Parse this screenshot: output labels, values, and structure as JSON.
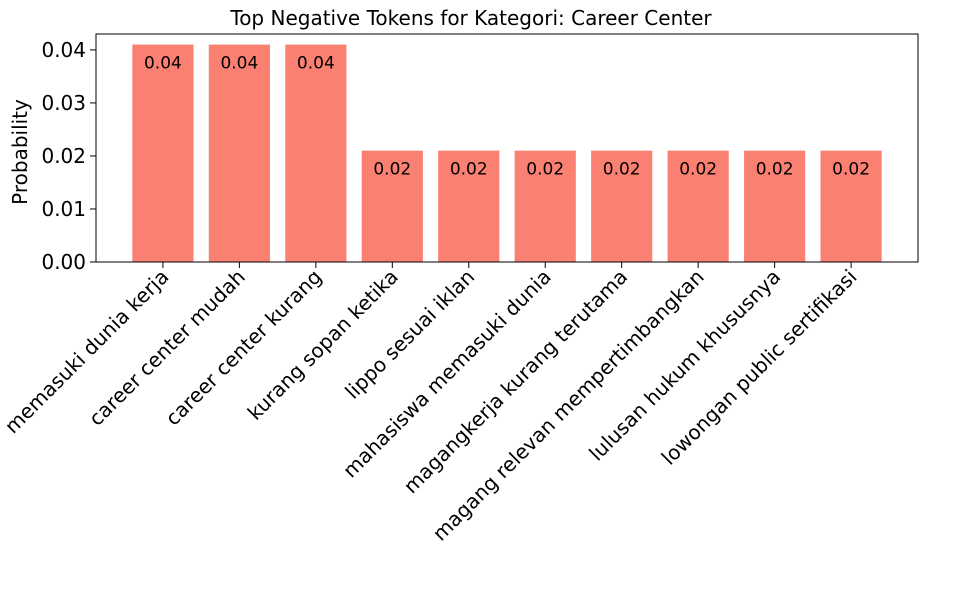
{
  "chart_data": {
    "type": "bar",
    "title": "Top Negative Tokens for Kategori: Career Center",
    "xlabel": "",
    "ylabel": "Probability",
    "ylim": [
      0,
      0.043
    ],
    "yticks": [
      "0.00",
      "0.01",
      "0.02",
      "0.03",
      "0.04"
    ],
    "ytick_values": [
      0,
      0.01,
      0.02,
      0.03,
      0.04
    ],
    "categories": [
      "memasuki dunia kerja",
      "career center mudah",
      "career center kurang",
      "kurang sopan ketika",
      "lippo sesuai iklan",
      "mahasiswa memasuki dunia",
      "magangkerja kurang terutama",
      "magang relevan mempertimbangkan",
      "lulusan hukum khususnya",
      "lowongan public sertifikasi"
    ],
    "values": [
      0.041,
      0.041,
      0.041,
      0.021,
      0.021,
      0.021,
      0.021,
      0.021,
      0.021,
      0.021
    ],
    "data_labels": [
      "0.04",
      "0.04",
      "0.04",
      "0.02",
      "0.02",
      "0.02",
      "0.02",
      "0.02",
      "0.02",
      "0.02"
    ],
    "bar_color": "#fa8072",
    "grid": false,
    "legend": "none"
  }
}
